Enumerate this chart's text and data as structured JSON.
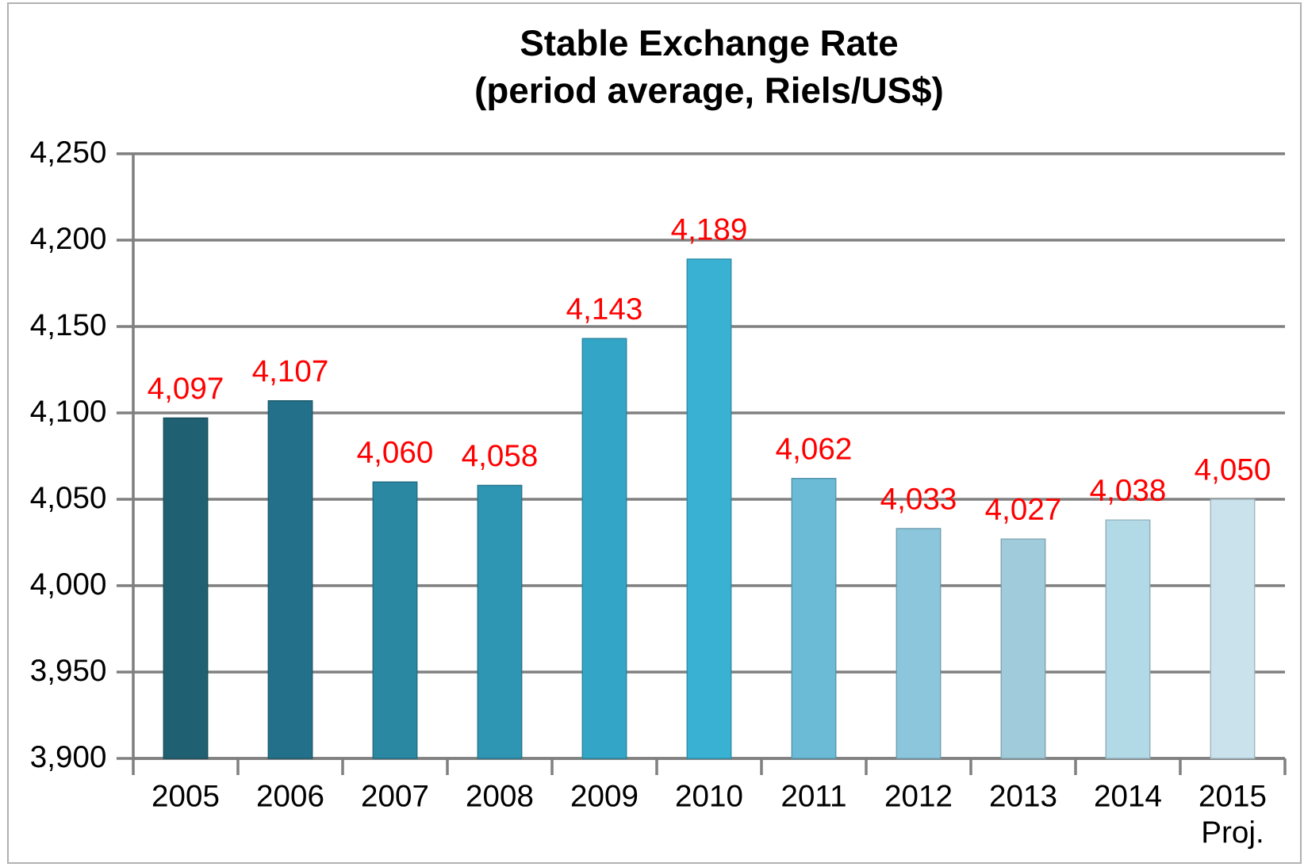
{
  "chart_data": {
    "type": "bar",
    "title": "Stable Exchange Rate",
    "subtitle": "(period average, Riels/US$)",
    "categories": [
      "2005",
      "2006",
      "2007",
      "2008",
      "2009",
      "2010",
      "2011",
      "2012",
      "2013",
      "2014",
      "2015 Proj."
    ],
    "values": [
      4097,
      4107,
      4060,
      4058,
      4143,
      4189,
      4062,
      4033,
      4027,
      4038,
      4050
    ],
    "value_labels": [
      "4,097",
      "4,107",
      "4,060",
      "4,058",
      "4,143",
      "4,189",
      "4,062",
      "4,033",
      "4,027",
      "4,038",
      "4,050"
    ],
    "colors": [
      "#1f6172",
      "#23708a",
      "#2a88a3",
      "#2e95b2",
      "#33a5c6",
      "#38b1d3",
      "#6bbad6",
      "#8cc6dd",
      "#a0cbdb",
      "#b2d9e6",
      "#c9e2ec"
    ],
    "ylim": [
      3900,
      4250
    ],
    "yticks": [
      {
        "value": 3900,
        "label": "3,900"
      },
      {
        "value": 3950,
        "label": "3,950"
      },
      {
        "value": 4000,
        "label": "4,000"
      },
      {
        "value": 4050,
        "label": "4,050"
      },
      {
        "value": 4100,
        "label": "4,100"
      },
      {
        "value": 4150,
        "label": "4,150"
      },
      {
        "value": 4200,
        "label": "4,200"
      },
      {
        "value": 4250,
        "label": "4,250"
      }
    ],
    "grid": "y"
  }
}
